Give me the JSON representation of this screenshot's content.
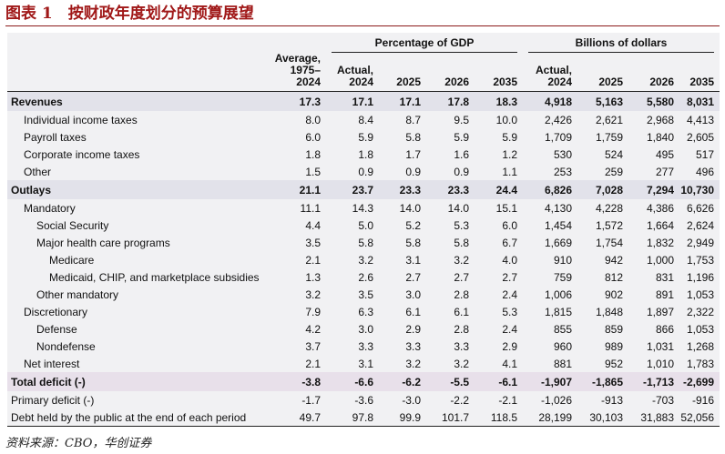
{
  "title": "图表 1　按财政年度划分的预算展望",
  "table": {
    "group_headers": [
      "Percentage of GDP",
      "Billions of dollars"
    ],
    "columns": [
      "Average,\n1975–2024",
      "Actual,\n2024",
      "2025",
      "2026",
      "2035",
      "Actual,\n2024",
      "2025",
      "2026",
      "2035"
    ],
    "rows": [
      {
        "label": "Revenues",
        "indent": 0,
        "emphasis": true,
        "values": [
          "17.3",
          "17.1",
          "17.1",
          "17.8",
          "18.3",
          "4,918",
          "5,163",
          "5,580",
          "8,031"
        ]
      },
      {
        "label": "Individual income taxes",
        "indent": 1,
        "values": [
          "8.0",
          "8.4",
          "8.7",
          "9.5",
          "10.0",
          "2,426",
          "2,621",
          "2,968",
          "4,413"
        ]
      },
      {
        "label": "Payroll taxes",
        "indent": 1,
        "values": [
          "6.0",
          "5.9",
          "5.8",
          "5.9",
          "5.9",
          "1,709",
          "1,759",
          "1,840",
          "2,605"
        ]
      },
      {
        "label": "Corporate income taxes",
        "indent": 1,
        "values": [
          "1.8",
          "1.8",
          "1.7",
          "1.6",
          "1.2",
          "530",
          "524",
          "495",
          "517"
        ]
      },
      {
        "label": "Other",
        "indent": 1,
        "values": [
          "1.5",
          "0.9",
          "0.9",
          "0.9",
          "1.1",
          "253",
          "259",
          "277",
          "496"
        ]
      },
      {
        "label": "Outlays",
        "indent": 0,
        "emphasis": true,
        "values": [
          "21.1",
          "23.7",
          "23.3",
          "23.3",
          "24.4",
          "6,826",
          "7,028",
          "7,294",
          "10,730"
        ]
      },
      {
        "label": "Mandatory",
        "indent": 1,
        "values": [
          "11.1",
          "14.3",
          "14.0",
          "14.0",
          "15.1",
          "4,130",
          "4,228",
          "4,386",
          "6,626"
        ]
      },
      {
        "label": "Social Security",
        "indent": 2,
        "values": [
          "4.4",
          "5.0",
          "5.2",
          "5.3",
          "6.0",
          "1,454",
          "1,572",
          "1,664",
          "2,624"
        ]
      },
      {
        "label": "Major health care programs",
        "indent": 2,
        "values": [
          "3.5",
          "5.8",
          "5.8",
          "5.8",
          "6.7",
          "1,669",
          "1,754",
          "1,832",
          "2,949"
        ]
      },
      {
        "label": "Medicare",
        "indent": 3,
        "values": [
          "2.1",
          "3.2",
          "3.1",
          "3.2",
          "4.0",
          "910",
          "942",
          "1,000",
          "1,753"
        ]
      },
      {
        "label": "Medicaid, CHIP, and marketplace subsidies",
        "indent": 3,
        "values": [
          "1.3",
          "2.6",
          "2.7",
          "2.7",
          "2.7",
          "759",
          "812",
          "831",
          "1,196"
        ]
      },
      {
        "label": "Other mandatory",
        "indent": 2,
        "values": [
          "3.2",
          "3.5",
          "3.0",
          "2.8",
          "2.4",
          "1,006",
          "902",
          "891",
          "1,053"
        ]
      },
      {
        "label": "Discretionary",
        "indent": 1,
        "values": [
          "7.9",
          "6.3",
          "6.1",
          "6.1",
          "5.3",
          "1,815",
          "1,848",
          "1,897",
          "2,322"
        ]
      },
      {
        "label": "Defense",
        "indent": 2,
        "values": [
          "4.2",
          "3.0",
          "2.9",
          "2.8",
          "2.4",
          "855",
          "859",
          "866",
          "1,053"
        ]
      },
      {
        "label": "Nondefense",
        "indent": 2,
        "values": [
          "3.7",
          "3.3",
          "3.3",
          "3.3",
          "2.9",
          "960",
          "989",
          "1,031",
          "1,268"
        ]
      },
      {
        "label": "Net interest",
        "indent": 1,
        "values": [
          "2.1",
          "3.1",
          "3.2",
          "3.2",
          "4.1",
          "881",
          "952",
          "1,010",
          "1,783"
        ]
      },
      {
        "label": "Total deficit (-)",
        "indent": 0,
        "emphasis": true,
        "values": [
          "-3.8",
          "-6.6",
          "-6.2",
          "-5.5",
          "-6.1",
          "-1,907",
          "-1,865",
          "-1,713",
          "-2,699"
        ]
      },
      {
        "label": "Primary deficit (-)",
        "indent": 0,
        "values": [
          "-1.7",
          "-3.6",
          "-3.0",
          "-2.2",
          "-2.1",
          "-1,026",
          "-913",
          "-703",
          "-916"
        ]
      },
      {
        "label": "Debt held by the public at the end of each period",
        "indent": 0,
        "values": [
          "49.7",
          "97.8",
          "99.9",
          "101.7",
          "118.5",
          "28,199",
          "30,103",
          "31,883",
          "52,056"
        ]
      }
    ]
  },
  "source": "资料来源：CBO，华创证券"
}
